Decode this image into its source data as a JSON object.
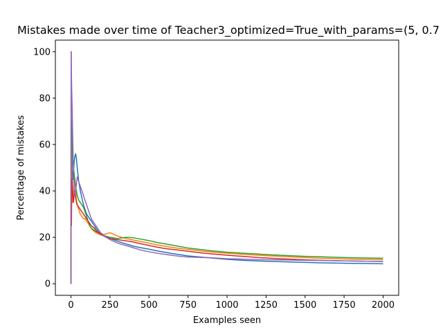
{
  "chart_data": {
    "type": "line",
    "title": "Mistakes made over time of Teacher3_optimized=True_with_params=(5, 0.7",
    "xlabel": "Examples seen",
    "ylabel": "Percentage of mistakes",
    "xlim": [
      -100,
      2100
    ],
    "ylim": [
      -5,
      105
    ],
    "xticks": [
      0,
      250,
      500,
      750,
      1000,
      1250,
      1500,
      1750,
      2000
    ],
    "yticks": [
      0,
      20,
      40,
      60,
      80,
      100
    ],
    "grid": false,
    "series": [
      {
        "color": "#1f77b4",
        "x": [
          0,
          1,
          2,
          3,
          5,
          8,
          12,
          16,
          20,
          25,
          30,
          35,
          40,
          50,
          60,
          70,
          80,
          90,
          100,
          110,
          120,
          130,
          140,
          150,
          160,
          175,
          190,
          200,
          225,
          250,
          300,
          350,
          400,
          450,
          500,
          550,
          600,
          650,
          700,
          750,
          800,
          850,
          900,
          950,
          1000,
          1100,
          1200,
          1300,
          1400,
          1500,
          1600,
          1700,
          1800,
          1900,
          2000
        ],
        "y": [
          0,
          100,
          50,
          66.7,
          60,
          50,
          45,
          48,
          52,
          55,
          56,
          54,
          50,
          44,
          40,
          37,
          34,
          32,
          30,
          29,
          28,
          27,
          26,
          25,
          24,
          22.5,
          21.5,
          21,
          20,
          19.5,
          18.3,
          17.2,
          16.2,
          15.5,
          14.9,
          14.2,
          13.6,
          13,
          12.5,
          12,
          11.7,
          11.4,
          11.1,
          10.8,
          10.5,
          10.1,
          9.8,
          9.6,
          9.4,
          9.2,
          9.0,
          8.9,
          8.8,
          8.7,
          8.6
        ]
      },
      {
        "color": "#ff7f0e",
        "x": [
          0,
          1,
          2,
          3,
          5,
          8,
          12,
          16,
          20,
          25,
          30,
          35,
          40,
          50,
          60,
          70,
          80,
          90,
          100,
          110,
          120,
          130,
          140,
          150,
          160,
          175,
          190,
          200,
          225,
          250,
          300,
          350,
          400,
          450,
          500,
          550,
          600,
          650,
          700,
          750,
          800,
          850,
          900,
          950,
          1000,
          1100,
          1200,
          1300,
          1400,
          1500,
          1600,
          1700,
          1800,
          1900,
          2000
        ],
        "y": [
          0,
          100,
          50,
          66.7,
          40,
          35,
          40,
          38,
          42,
          45,
          40,
          36,
          34,
          32,
          30,
          29,
          28,
          28,
          27,
          26,
          25,
          24,
          23,
          22.5,
          22,
          21.5,
          21,
          21,
          21.5,
          22,
          20.5,
          19.5,
          18.8,
          18.2,
          17.5,
          16.8,
          16.2,
          15.6,
          15.2,
          14.8,
          14.4,
          14,
          13.7,
          13.4,
          13.1,
          12.7,
          12.3,
          11.9,
          11.6,
          11.3,
          11.0,
          10.8,
          10.6,
          10.5,
          10.4
        ]
      },
      {
        "color": "#2ca02c",
        "x": [
          0,
          1,
          2,
          3,
          5,
          8,
          12,
          16,
          20,
          25,
          30,
          35,
          40,
          50,
          60,
          70,
          80,
          90,
          100,
          110,
          120,
          130,
          140,
          150,
          160,
          175,
          190,
          200,
          225,
          250,
          300,
          350,
          400,
          450,
          500,
          550,
          600,
          650,
          700,
          750,
          800,
          850,
          900,
          950,
          1000,
          1100,
          1200,
          1300,
          1400,
          1500,
          1600,
          1700,
          1800,
          1900,
          2000
        ],
        "y": [
          0,
          100,
          50,
          66.7,
          70,
          62,
          55,
          50,
          48,
          45,
          42,
          40,
          38,
          36,
          35,
          34,
          33,
          31,
          29,
          27,
          25,
          24,
          23.5,
          23,
          22.5,
          22,
          21.5,
          21,
          20.5,
          20,
          19.5,
          20,
          19.8,
          19.2,
          18.6,
          17.8,
          17.2,
          16.6,
          16,
          15.4,
          15,
          14.6,
          14.2,
          13.9,
          13.6,
          13.2,
          12.8,
          12.4,
          12.1,
          11.8,
          11.6,
          11.4,
          11.2,
          11.1,
          11.0
        ]
      },
      {
        "color": "#d62728",
        "x": [
          0,
          1,
          2,
          3,
          5,
          8,
          12,
          16,
          20,
          25,
          30,
          35,
          40,
          50,
          60,
          70,
          80,
          90,
          100,
          110,
          120,
          130,
          140,
          150,
          160,
          175,
          190,
          200,
          225,
          250,
          300,
          350,
          400,
          450,
          500,
          550,
          600,
          650,
          700,
          750,
          800,
          850,
          900,
          950,
          1000,
          1100,
          1200,
          1300,
          1400,
          1500,
          1600,
          1700,
          1800,
          1900,
          2000
        ],
        "y": [
          0,
          50,
          33.3,
          25,
          40,
          45,
          38,
          35,
          38,
          40,
          37,
          35,
          34,
          33,
          32,
          31,
          30,
          29,
          28,
          27,
          26,
          25,
          24.5,
          24,
          23,
          22,
          21.5,
          21,
          20,
          19.5,
          19,
          18.5,
          18,
          17.2,
          16.5,
          15.8,
          15.2,
          14.8,
          14.4,
          14,
          13.6,
          13.2,
          12.9,
          12.6,
          12.3,
          11.8,
          11.3,
          10.9,
          10.6,
          10.3,
          10.1,
          9.9,
          9.8,
          9.7,
          9.6
        ]
      },
      {
        "color": "#9467bd",
        "x": [
          0,
          1,
          2,
          3,
          5,
          8,
          12,
          16,
          20,
          25,
          30,
          35,
          40,
          50,
          60,
          70,
          80,
          90,
          100,
          110,
          120,
          130,
          140,
          150,
          160,
          175,
          190,
          200,
          225,
          250,
          300,
          350,
          400,
          450,
          500,
          550,
          600,
          650,
          700,
          750,
          800,
          850,
          900,
          950,
          1000,
          1100,
          1200,
          1300,
          1400,
          1500,
          1600,
          1700,
          1800,
          1900,
          2000
        ],
        "y": [
          0,
          100,
          100,
          90,
          83,
          75,
          60,
          50,
          42,
          38,
          40,
          43,
          46,
          44,
          42,
          40,
          38,
          36,
          34,
          32,
          30,
          28,
          27,
          26,
          25,
          23.5,
          22,
          21.5,
          20,
          19,
          17.5,
          16.5,
          15.5,
          14.5,
          13.8,
          13.2,
          12.7,
          12.2,
          11.8,
          11.5,
          11.4,
          11.3,
          11.2,
          11.0,
          10.8,
          10.6,
          10.4,
          10.3,
          10.2,
          10.1,
          10.0,
          9.9,
          9.8,
          9.7,
          9.6
        ]
      }
    ]
  }
}
